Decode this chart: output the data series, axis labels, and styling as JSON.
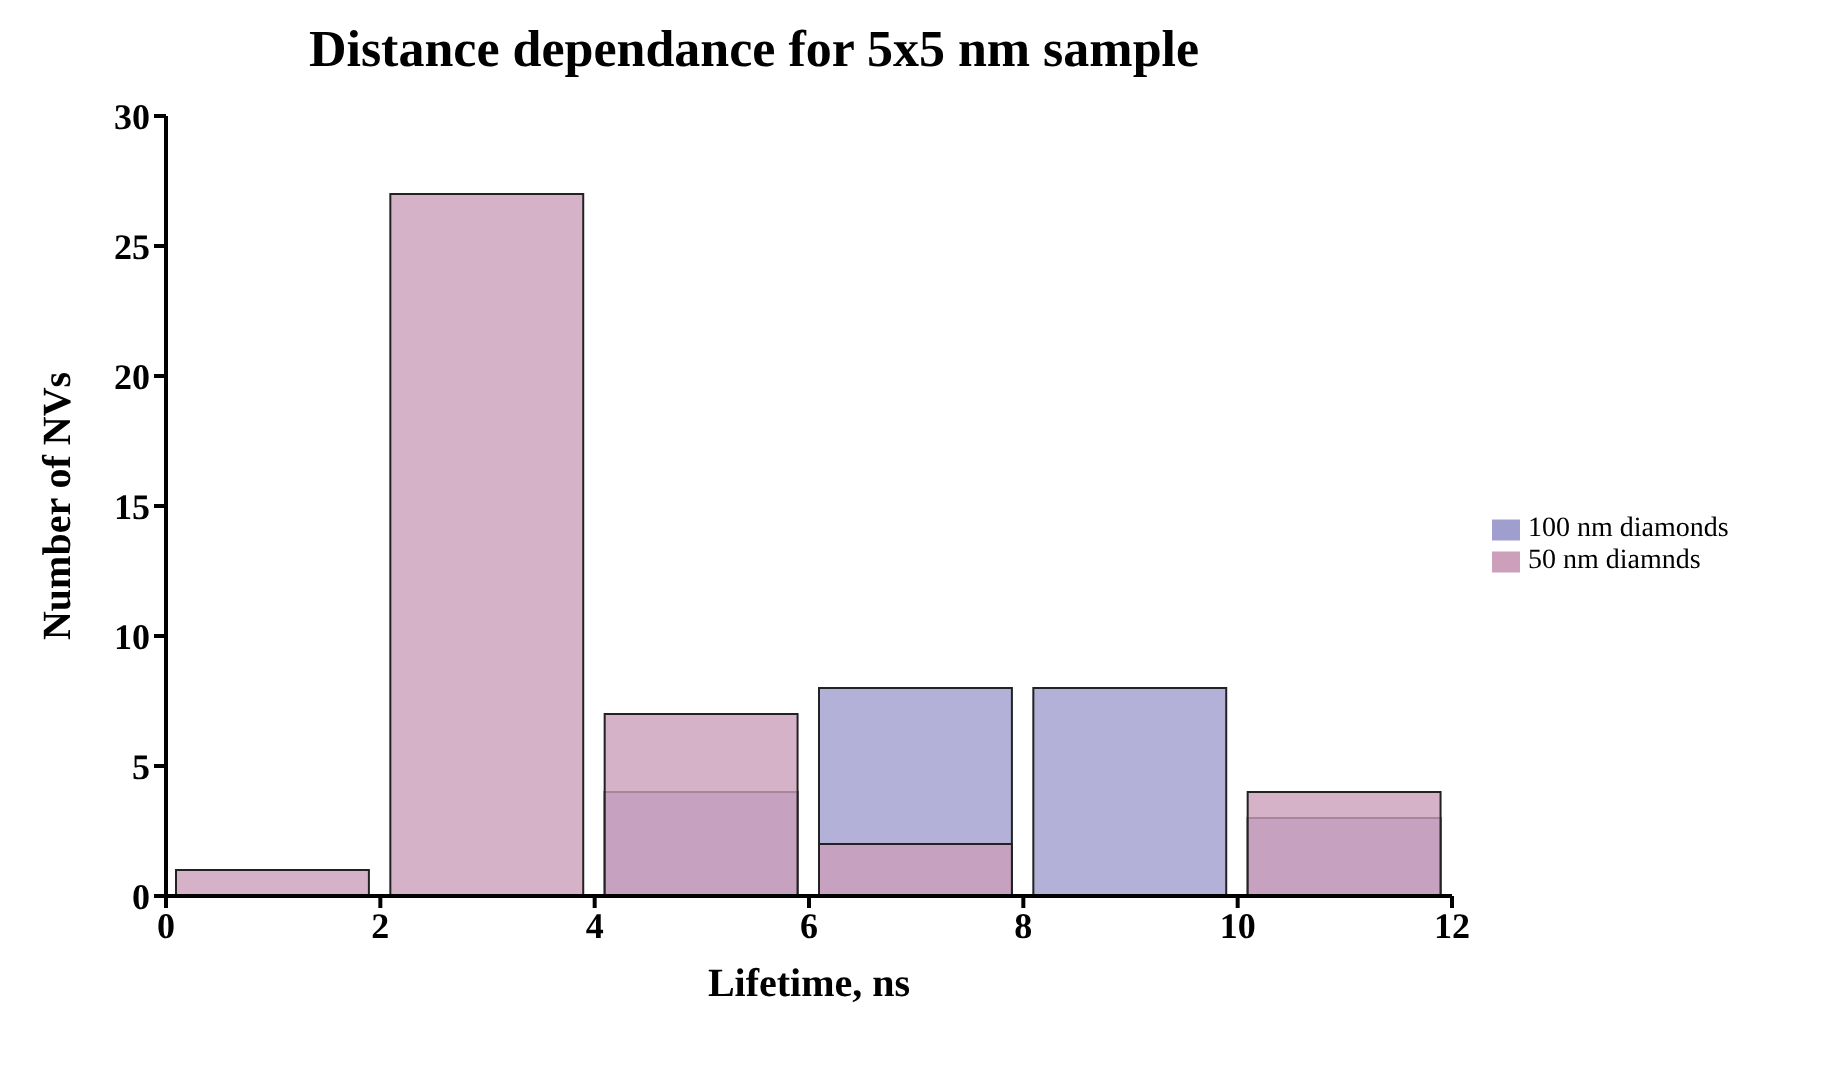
{
  "chart_data": {
    "type": "histogram",
    "title": "Distance dependance for 5x5 nm sample",
    "xlabel": "Lifetime, ns",
    "ylabel": "Number of NVs",
    "bins": [
      0,
      2,
      4,
      6,
      8,
      10,
      12
    ],
    "series": [
      {
        "name": "100 nm diamonds",
        "color": "#a09ece",
        "values": [
          0,
          0,
          4,
          8,
          8,
          3
        ]
      },
      {
        "name": "50 nm diamnds",
        "color": "#cc9fba",
        "values": [
          1,
          27,
          7,
          2,
          0,
          4
        ]
      }
    ],
    "xlim": [
      0,
      12
    ],
    "xticks": [
      0,
      2,
      4,
      6,
      8,
      10,
      12
    ],
    "ylim": [
      0,
      30
    ],
    "yticks": [
      0,
      5,
      10,
      15,
      20,
      25,
      30
    ],
    "grid": false,
    "legend": "right"
  }
}
